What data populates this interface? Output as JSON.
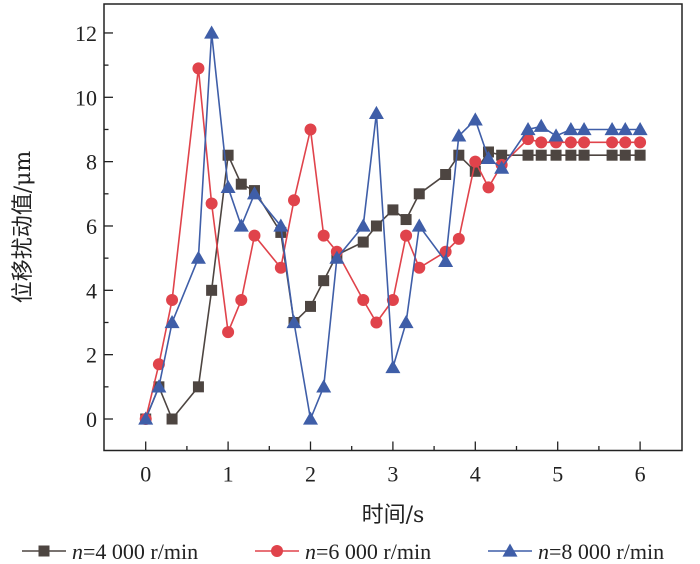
{
  "chart_data": {
    "type": "line",
    "title": "",
    "xlabel": "时间/s",
    "ylabel": "位移扰动值/μm",
    "xlim": [
      -0.5,
      6.45
    ],
    "ylim": [
      -0.9,
      13.05
    ],
    "xticks": [
      0,
      1,
      2,
      3,
      4,
      5,
      6
    ],
    "xtick_labels": [
      "0",
      "1",
      "2",
      "3",
      "4",
      "5",
      "6"
    ],
    "yticks": [
      0,
      2,
      4,
      6,
      8,
      10,
      12
    ],
    "ytick_labels": [
      "0",
      "2",
      "4",
      "6",
      "8",
      "10",
      "12"
    ],
    "x_minor_ticks": [
      0.5,
      1.5,
      2.5,
      3.5,
      4.5,
      5.5
    ],
    "y_minor_ticks": [
      1,
      3,
      5,
      7,
      9,
      11
    ],
    "grid": false,
    "legend_position": "bottom",
    "x": [
      0,
      0.16,
      0.32,
      0.64,
      0.8,
      1.0,
      1.16,
      1.32,
      1.64,
      1.8,
      2.0,
      2.16,
      2.32,
      2.64,
      2.8,
      3.0,
      3.16,
      3.32,
      3.64,
      3.8,
      4.0,
      4.16,
      4.32,
      4.64,
      4.8,
      4.98,
      5.16,
      5.32,
      5.66,
      5.82,
      6.0
    ],
    "series": [
      {
        "name_var": "n",
        "name_rest": "=4 000 r/min",
        "marker": "square",
        "color": "#4d4541",
        "values": [
          0,
          1,
          0,
          1,
          4,
          8.2,
          7.3,
          7.1,
          5.8,
          3.0,
          3.5,
          4.3,
          5.1,
          5.5,
          6.0,
          6.5,
          6.2,
          7.0,
          7.6,
          8.2,
          7.7,
          8.3,
          8.2,
          8.2,
          8.2,
          8.2,
          8.2,
          8.2,
          8.2,
          8.2,
          8.2
        ]
      },
      {
        "name_var": "n",
        "name_rest": "=6 000 r/min",
        "marker": "circle",
        "color": "#e0434b",
        "values": [
          0,
          1.7,
          3.7,
          10.9,
          6.7,
          2.7,
          3.7,
          5.7,
          4.7,
          6.8,
          9.0,
          5.7,
          5.2,
          3.7,
          3.0,
          3.7,
          5.7,
          4.7,
          5.2,
          5.6,
          8.0,
          7.2,
          7.9,
          8.7,
          8.6,
          8.6,
          8.6,
          8.6,
          8.6,
          8.6,
          8.6
        ]
      },
      {
        "name_var": "n",
        "name_rest": "=8 000 r/min",
        "marker": "triangle",
        "color": "#3f5ea8",
        "values": [
          0,
          1.0,
          3.0,
          5.0,
          12.0,
          7.2,
          6.0,
          7.0,
          6.0,
          3.0,
          0,
          1.0,
          5.0,
          6.0,
          9.5,
          1.6,
          3.0,
          6.0,
          4.9,
          8.8,
          9.3,
          8.1,
          7.8,
          9.0,
          9.1,
          8.8,
          9.0,
          9.0,
          9.0,
          9.0,
          9.0
        ]
      }
    ]
  }
}
